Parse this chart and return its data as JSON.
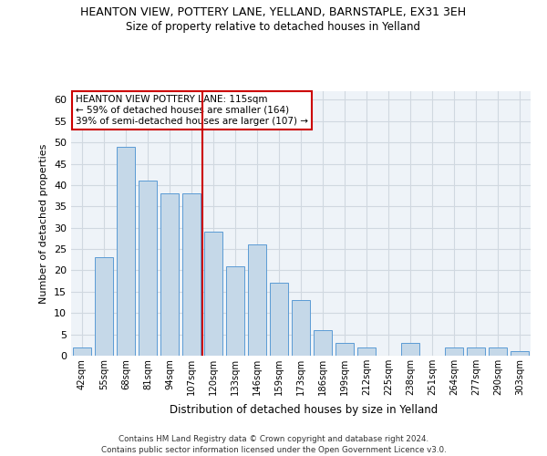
{
  "title_line1": "HEANTON VIEW, POTTERY LANE, YELLAND, BARNSTAPLE, EX31 3EH",
  "title_line2": "Size of property relative to detached houses in Yelland",
  "xlabel": "Distribution of detached houses by size in Yelland",
  "ylabel": "Number of detached properties",
  "categories": [
    "42sqm",
    "55sqm",
    "68sqm",
    "81sqm",
    "94sqm",
    "107sqm",
    "120sqm",
    "133sqm",
    "146sqm",
    "159sqm",
    "173sqm",
    "186sqm",
    "199sqm",
    "212sqm",
    "225sqm",
    "238sqm",
    "251sqm",
    "264sqm",
    "277sqm",
    "290sqm",
    "303sqm"
  ],
  "values": [
    2,
    23,
    49,
    41,
    38,
    38,
    29,
    21,
    26,
    17,
    13,
    6,
    3,
    2,
    0,
    3,
    0,
    2,
    2,
    2,
    1
  ],
  "bar_color": "#c5d8e8",
  "bar_edge_color": "#5b9bd5",
  "grid_color": "#d0d8e0",
  "bg_color": "#eef3f8",
  "vline_x": 5.5,
  "vline_color": "#cc0000",
  "annotation_text": "HEANTON VIEW POTTERY LANE: 115sqm\n← 59% of detached houses are smaller (164)\n39% of semi-detached houses are larger (107) →",
  "annotation_box_color": "#ffffff",
  "annotation_box_edge": "#cc0000",
  "ylim": [
    0,
    62
  ],
  "yticks": [
    0,
    5,
    10,
    15,
    20,
    25,
    30,
    35,
    40,
    45,
    50,
    55,
    60
  ],
  "footer_line1": "Contains HM Land Registry data © Crown copyright and database right 2024.",
  "footer_line2": "Contains public sector information licensed under the Open Government Licence v3.0."
}
